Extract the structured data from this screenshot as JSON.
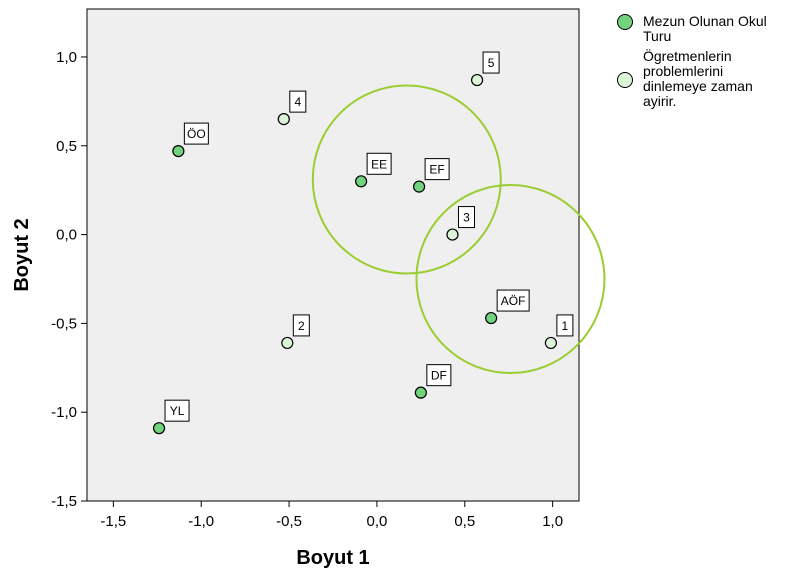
{
  "chart_data": {
    "type": "scatter",
    "xlabel": "Boyut 1",
    "ylabel": "Boyut 2",
    "xlim": [
      -1.65,
      1.15
    ],
    "ylim": [
      -1.5,
      1.27
    ],
    "x_ticks": [
      -1.5,
      -1.0,
      -0.5,
      0.0,
      0.5,
      1.0
    ],
    "x_tick_labels": [
      "-1,5",
      "-1,0",
      "-0,5",
      "0,0",
      "0,5",
      "1,0"
    ],
    "y_ticks": [
      -1.5,
      -1.0,
      -0.5,
      0.0,
      0.5,
      1.0
    ],
    "y_tick_labels": [
      "-1,5",
      "-1,0",
      "-0,5",
      "0,0",
      "0,5",
      "1,0"
    ],
    "grid": false,
    "legend_position": "right",
    "background": "#efefef",
    "series": [
      {
        "name": "Mezun Olunan Okul Turu",
        "color": "#72d27e",
        "points": [
          {
            "label": "ÖO",
            "x": -1.13,
            "y": 0.47
          },
          {
            "label": "EE",
            "x": -0.09,
            "y": 0.3
          },
          {
            "label": "EF",
            "x": 0.24,
            "y": 0.27
          },
          {
            "label": "AÖF",
            "x": 0.65,
            "y": -0.47
          },
          {
            "label": "DF",
            "x": 0.25,
            "y": -0.89
          },
          {
            "label": "YL",
            "x": -1.24,
            "y": -1.09
          }
        ]
      },
      {
        "name": "Ögretmenlerin problemlerini dinlemeye zaman ayirir.",
        "color": "#dcf5d8",
        "points": [
          {
            "label": "1",
            "x": 0.99,
            "y": -0.61
          },
          {
            "label": "2",
            "x": -0.51,
            "y": -0.61
          },
          {
            "label": "3",
            "x": 0.43,
            "y": 0.0
          },
          {
            "label": "4",
            "x": -0.53,
            "y": 0.65
          },
          {
            "label": "5",
            "x": 0.57,
            "y": 0.87
          }
        ]
      }
    ],
    "annotations": [
      {
        "type": "circle",
        "color": "#9acd32",
        "center": [
          0.17,
          0.31
        ],
        "radius": 0.535
      },
      {
        "type": "circle",
        "color": "#9acd32",
        "center": [
          0.76,
          -0.25
        ],
        "radius": 0.535
      }
    ]
  },
  "legend": {
    "items": [
      {
        "lines": [
          "Mezun Olunan Okul",
          "Turu"
        ],
        "color": "#72d27e"
      },
      {
        "lines": [
          "Ögretmenlerin",
          "problemlerini",
          "dinlemeye zaman",
          "ayirir."
        ],
        "color": "#dcf5d8"
      }
    ]
  }
}
